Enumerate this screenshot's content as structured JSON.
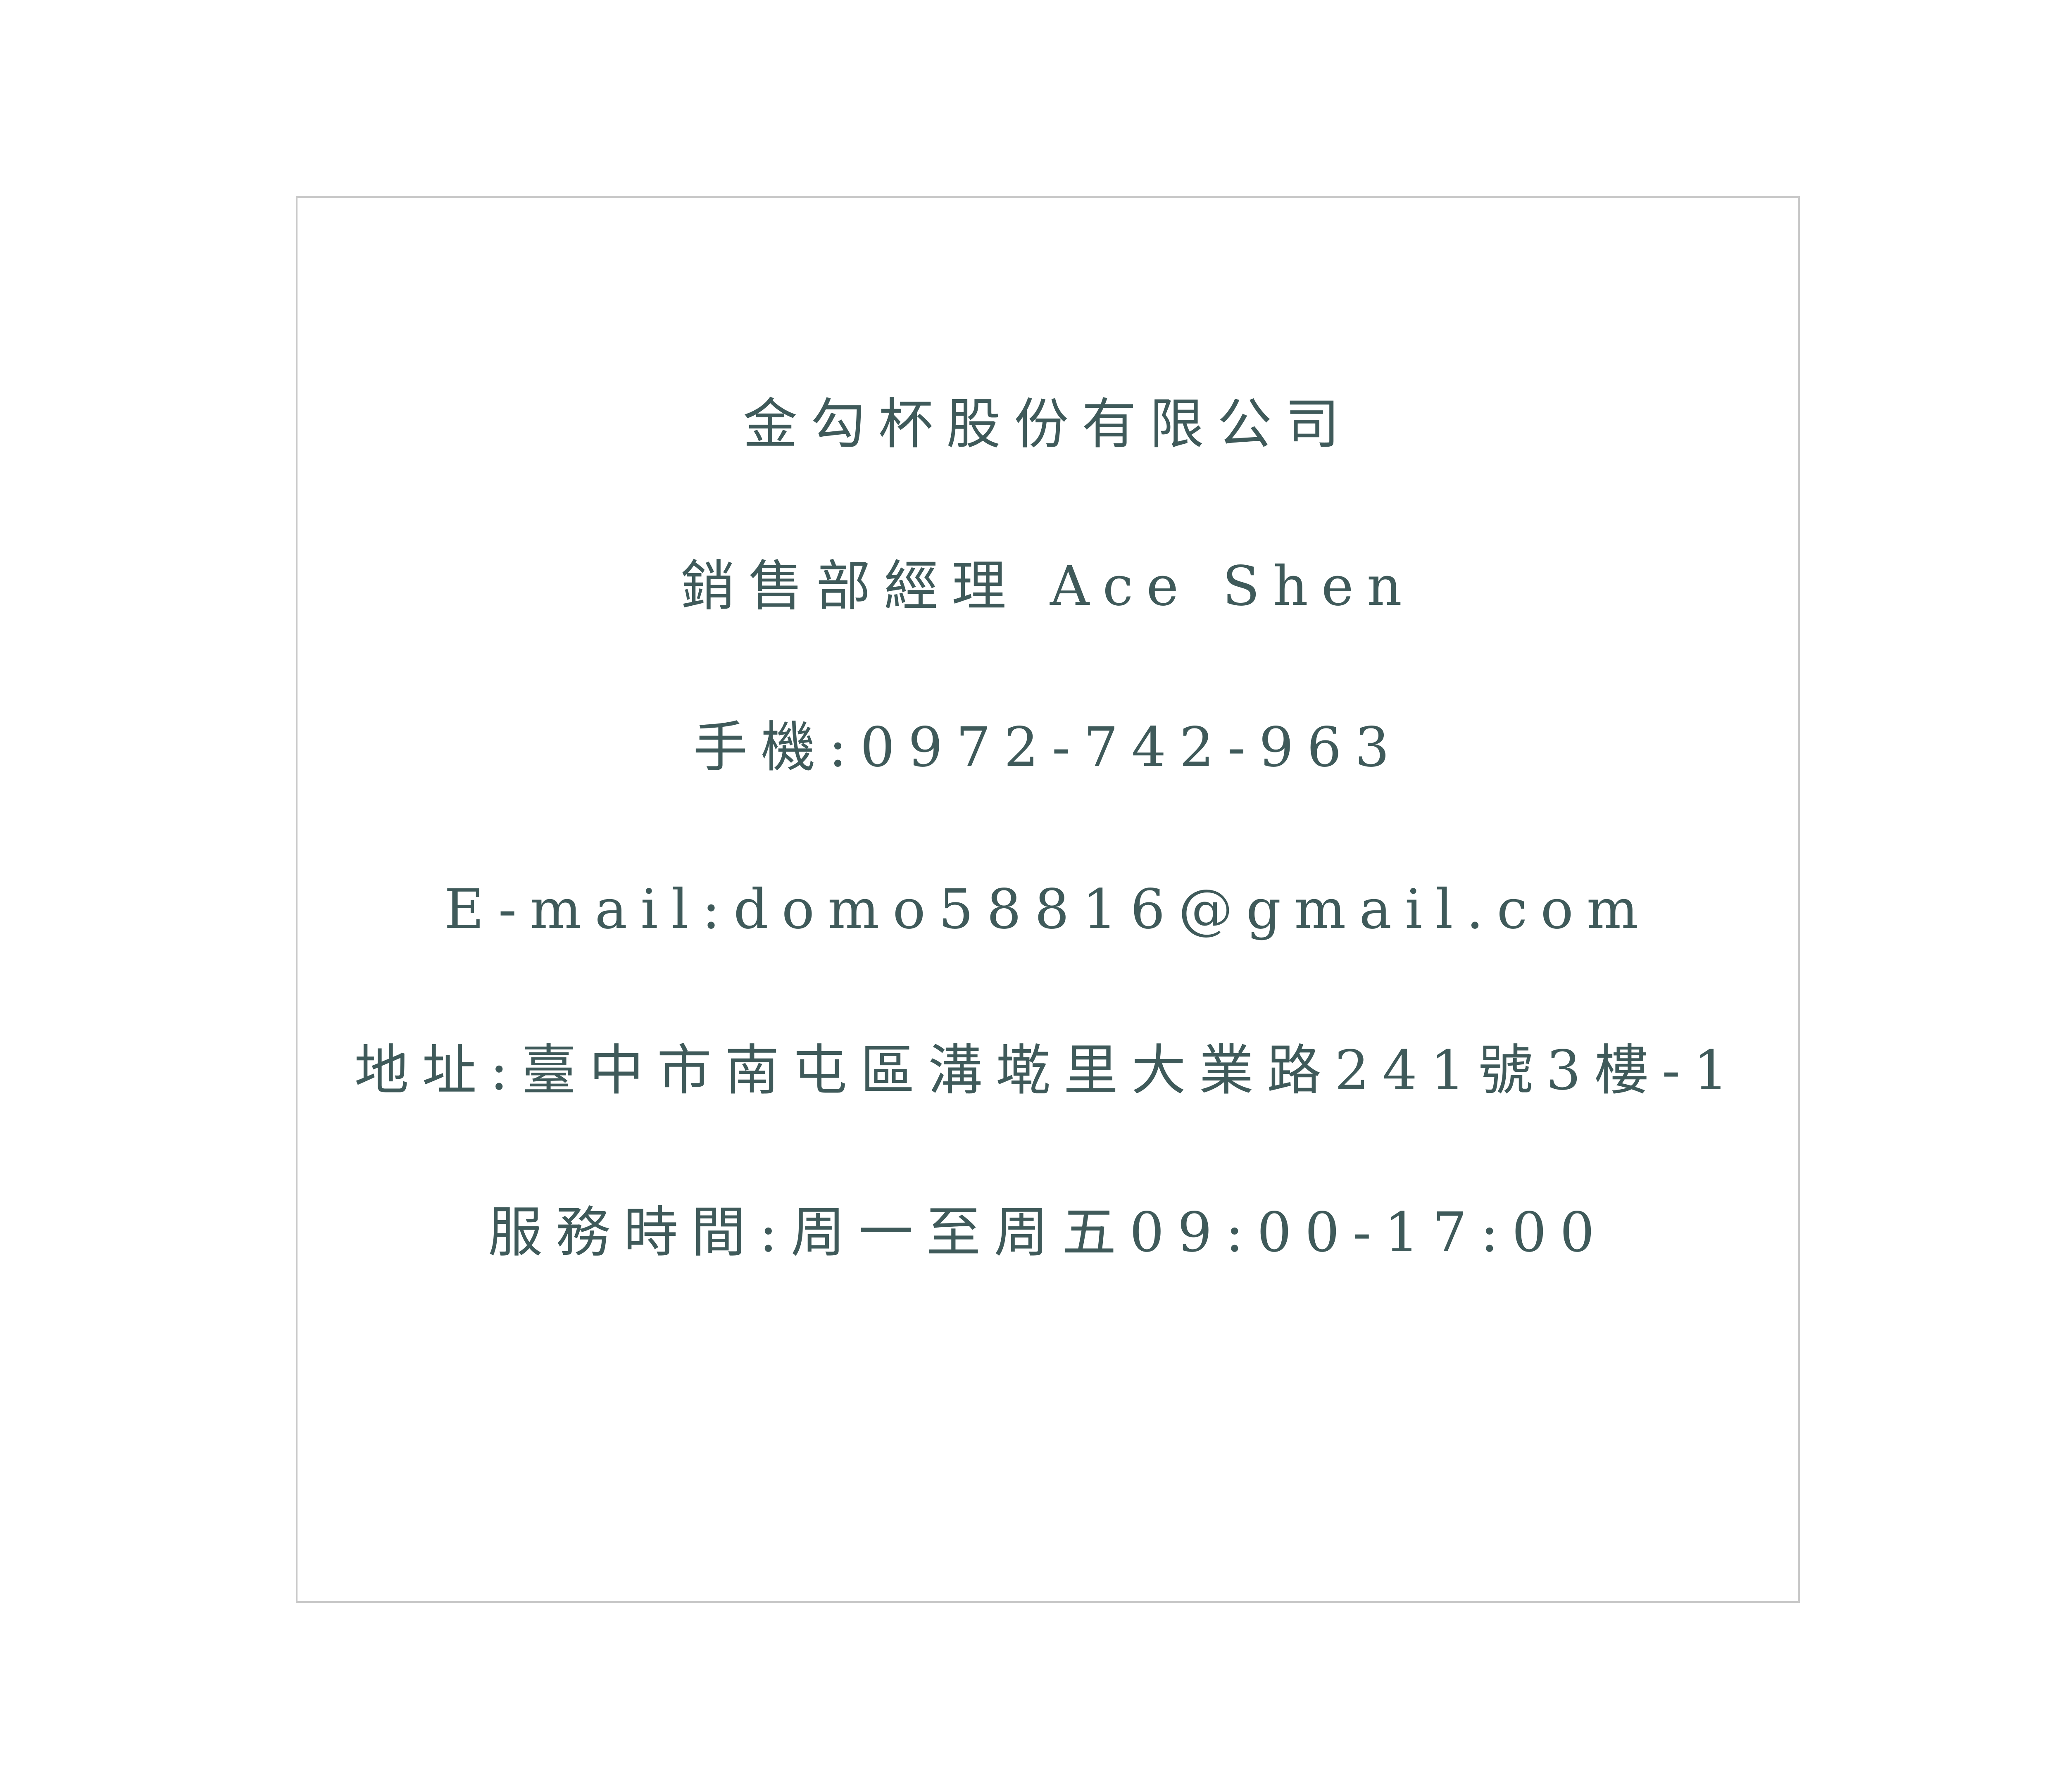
{
  "card": {
    "company": "金勾杯股份有限公司",
    "title_name": "銷售部經理 Ace Shen",
    "phone": "手機:0972-742-963",
    "email": "E-mail:domo58816@gmail.com",
    "address": "地址:臺中市南屯區溝墘里大業路241號3樓-1",
    "hours": "服務時間:周一至周五09:00-17:00"
  },
  "colors": {
    "text": "#3f5a5a",
    "border": "#c9c9c9",
    "background": "#ffffff"
  }
}
